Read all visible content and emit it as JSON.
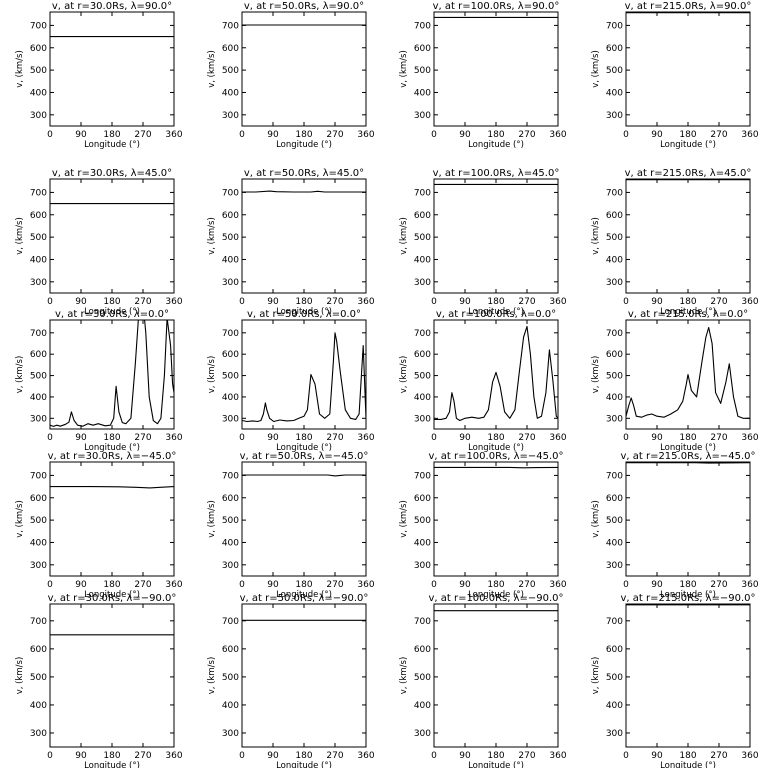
{
  "figure": {
    "background": "#ffffff",
    "line_color": "#000000"
  },
  "chart_data": [
    {
      "type": "line",
      "title": "v, at r=30.0Rs, λ=90.0°",
      "xlabel": "Longitude (°)",
      "ylabel": "v, (km/s)",
      "xlim": [
        0,
        360
      ],
      "ylim": [
        250,
        760
      ],
      "xticks": [
        0,
        90,
        180,
        270,
        360
      ],
      "yticks": [
        300,
        400,
        500,
        600,
        700
      ],
      "grid": false,
      "series": [
        {
          "x": [
            0,
            360
          ],
          "y": [
            650,
            650
          ]
        }
      ]
    },
    {
      "type": "line",
      "title": "v, at r=50.0Rs, λ=90.0°",
      "xlabel": "Longitude (°)",
      "ylabel": "v, (km/s)",
      "xlim": [
        0,
        360
      ],
      "ylim": [
        250,
        760
      ],
      "xticks": [
        0,
        90,
        180,
        270,
        360
      ],
      "yticks": [
        300,
        400,
        500,
        600,
        700
      ],
      "grid": false,
      "series": [
        {
          "x": [
            0,
            360
          ],
          "y": [
            702,
            702
          ]
        }
      ]
    },
    {
      "type": "line",
      "title": "v, at r=100.0Rs, λ=90.0°",
      "xlabel": "Longitude (°)",
      "ylabel": "v, (km/s)",
      "xlim": [
        0,
        360
      ],
      "ylim": [
        250,
        760
      ],
      "xticks": [
        0,
        90,
        180,
        270,
        360
      ],
      "yticks": [
        300,
        400,
        500,
        600,
        700
      ],
      "grid": false,
      "series": [
        {
          "x": [
            0,
            360
          ],
          "y": [
            736,
            736
          ]
        }
      ]
    },
    {
      "type": "line",
      "title": "v, at r=215.0Rs, λ=90.0°",
      "xlabel": "Longitude (°)",
      "ylabel": "v, (km/s)",
      "xlim": [
        0,
        360
      ],
      "ylim": [
        250,
        760
      ],
      "xticks": [
        0,
        90,
        180,
        270,
        360
      ],
      "yticks": [
        300,
        400,
        500,
        600,
        700
      ],
      "grid": false,
      "series": [
        {
          "x": [
            0,
            360
          ],
          "y": [
            757,
            757
          ]
        }
      ]
    },
    {
      "type": "line",
      "title": "v, at r=30.0Rs, λ=45.0°",
      "xlabel": "Longitude (°)",
      "ylabel": "v, (km/s)",
      "xlim": [
        0,
        360
      ],
      "ylim": [
        250,
        760
      ],
      "xticks": [
        0,
        90,
        180,
        270,
        360
      ],
      "yticks": [
        300,
        400,
        500,
        600,
        700
      ],
      "grid": false,
      "series": [
        {
          "x": [
            0,
            360
          ],
          "y": [
            650,
            650
          ]
        }
      ]
    },
    {
      "type": "line",
      "title": "v, at r=50.0Rs, λ=45.0°",
      "xlabel": "Longitude (°)",
      "ylabel": "v, (km/s)",
      "xlim": [
        0,
        360
      ],
      "ylim": [
        250,
        760
      ],
      "xticks": [
        0,
        90,
        180,
        270,
        360
      ],
      "yticks": [
        300,
        400,
        500,
        600,
        700
      ],
      "grid": false,
      "series": [
        {
          "x": [
            0,
            40,
            80,
            100,
            150,
            200,
            220,
            240,
            300,
            360
          ],
          "y": [
            702,
            702,
            706,
            703,
            702,
            702,
            705,
            702,
            702,
            702
          ]
        }
      ]
    },
    {
      "type": "line",
      "title": "v, at r=100.0Rs, λ=45.0°",
      "xlabel": "Longitude (°)",
      "ylabel": "v, (km/s)",
      "xlim": [
        0,
        360
      ],
      "ylim": [
        250,
        760
      ],
      "xticks": [
        0,
        90,
        180,
        270,
        360
      ],
      "yticks": [
        300,
        400,
        500,
        600,
        700
      ],
      "grid": false,
      "series": [
        {
          "x": [
            0,
            360
          ],
          "y": [
            736,
            736
          ]
        }
      ]
    },
    {
      "type": "line",
      "title": "v, at r=215.0Rs, λ=45.0°",
      "xlabel": "Longitude (°)",
      "ylabel": "v, (km/s)",
      "xlim": [
        0,
        360
      ],
      "ylim": [
        250,
        760
      ],
      "xticks": [
        0,
        90,
        180,
        270,
        360
      ],
      "yticks": [
        300,
        400,
        500,
        600,
        700
      ],
      "grid": false,
      "series": [
        {
          "x": [
            0,
            360
          ],
          "y": [
            757,
            757
          ]
        }
      ]
    },
    {
      "type": "line",
      "title": "v, at r=30.0Rs, λ=0.0°",
      "xlabel": "Longitude (°)",
      "ylabel": "v, (km/s)",
      "xlim": [
        0,
        360
      ],
      "ylim": [
        250,
        760
      ],
      "xticks": [
        0,
        90,
        180,
        270,
        360
      ],
      "yticks": [
        300,
        400,
        500,
        600,
        700
      ],
      "grid": false,
      "series": [
        {
          "x": [
            0,
            10,
            20,
            30,
            45,
            55,
            62,
            70,
            80,
            95,
            110,
            125,
            140,
            160,
            175,
            185,
            192,
            200,
            210,
            220,
            235,
            248,
            258,
            270,
            278,
            288,
            300,
            312,
            322,
            332,
            340,
            350,
            356,
            360
          ],
          "y": [
            268,
            262,
            268,
            263,
            272,
            282,
            330,
            290,
            268,
            263,
            275,
            268,
            275,
            265,
            268,
            300,
            450,
            330,
            280,
            275,
            300,
            560,
            800,
            840,
            700,
            400,
            290,
            275,
            300,
            500,
            770,
            640,
            460,
            420
          ]
        }
      ]
    },
    {
      "type": "line",
      "title": "v, at r=50.0Rs, λ=0.0°",
      "xlabel": "Longitude (°)",
      "ylabel": "v, (km/s)",
      "xlim": [
        0,
        360
      ],
      "ylim": [
        250,
        760
      ],
      "xticks": [
        0,
        90,
        180,
        270,
        360
      ],
      "yticks": [
        300,
        400,
        500,
        600,
        700
      ],
      "grid": false,
      "series": [
        {
          "x": [
            0,
            15,
            30,
            45,
            55,
            62,
            68,
            72,
            80,
            92,
            110,
            130,
            150,
            165,
            180,
            190,
            200,
            212,
            225,
            240,
            255,
            265,
            270,
            275,
            285,
            300,
            315,
            330,
            340,
            352,
            360
          ],
          "y": [
            290,
            285,
            288,
            285,
            290,
            320,
            372,
            340,
            300,
            285,
            292,
            288,
            290,
            300,
            310,
            340,
            505,
            460,
            320,
            300,
            320,
            560,
            700,
            660,
            520,
            340,
            300,
            295,
            320,
            640,
            300
          ]
        }
      ]
    },
    {
      "type": "line",
      "title": "v, at r=100.0Rs, λ=0.0°",
      "xlabel": "Longitude (°)",
      "ylabel": "v, (km/s)",
      "xlim": [
        0,
        360
      ],
      "ylim": [
        250,
        760
      ],
      "xticks": [
        0,
        90,
        180,
        270,
        360
      ],
      "yticks": [
        300,
        400,
        500,
        600,
        700
      ],
      "grid": false,
      "series": [
        {
          "x": [
            0,
            20,
            35,
            45,
            52,
            58,
            65,
            75,
            90,
            110,
            130,
            145,
            158,
            170,
            180,
            192,
            205,
            220,
            235,
            248,
            260,
            270,
            280,
            290,
            300,
            312,
            325,
            335,
            345,
            355,
            360
          ],
          "y": [
            295,
            295,
            300,
            330,
            420,
            380,
            300,
            290,
            300,
            305,
            300,
            305,
            340,
            470,
            515,
            450,
            330,
            300,
            340,
            520,
            680,
            730,
            600,
            400,
            300,
            310,
            420,
            620,
            480,
            310,
            300
          ]
        }
      ]
    },
    {
      "type": "line",
      "title": "v, at r=215.0Rs, λ=0.0°",
      "xlabel": "Longitude (°)",
      "ylabel": "v, (km/s)",
      "xlim": [
        0,
        360
      ],
      "ylim": [
        250,
        760
      ],
      "xticks": [
        0,
        90,
        180,
        270,
        360
      ],
      "yticks": [
        300,
        400,
        500,
        600,
        700
      ],
      "grid": false,
      "series": [
        {
          "x": [
            0,
            8,
            15,
            22,
            30,
            45,
            60,
            75,
            90,
            110,
            130,
            150,
            165,
            175,
            180,
            190,
            205,
            220,
            232,
            240,
            250,
            260,
            275,
            290,
            300,
            312,
            325,
            340,
            360
          ],
          "y": [
            310,
            360,
            395,
            360,
            310,
            305,
            315,
            320,
            310,
            305,
            320,
            340,
            380,
            460,
            505,
            430,
            400,
            560,
            680,
            725,
            650,
            420,
            370,
            470,
            555,
            400,
            310,
            300,
            300
          ]
        }
      ]
    },
    {
      "type": "line",
      "title": "v, at r=30.0Rs, λ=−45.0°",
      "xlabel": "Longitude (°)",
      "ylabel": "v, (km/s)",
      "xlim": [
        0,
        360
      ],
      "ylim": [
        250,
        760
      ],
      "xticks": [
        0,
        90,
        180,
        270,
        360
      ],
      "yticks": [
        300,
        400,
        500,
        600,
        700
      ],
      "grid": false,
      "series": [
        {
          "x": [
            0,
            120,
            200,
            250,
            290,
            320,
            360
          ],
          "y": [
            650,
            650,
            649,
            647,
            644,
            647,
            650
          ]
        }
      ]
    },
    {
      "type": "line",
      "title": "v, at r=50.0Rs, λ=−45.0°",
      "xlabel": "Longitude (°)",
      "ylabel": "v, (km/s)",
      "xlim": [
        0,
        360
      ],
      "ylim": [
        250,
        760
      ],
      "xticks": [
        0,
        90,
        180,
        270,
        360
      ],
      "yticks": [
        300,
        400,
        500,
        600,
        700
      ],
      "grid": false,
      "series": [
        {
          "x": [
            0,
            150,
            250,
            270,
            285,
            300,
            360
          ],
          "y": [
            702,
            702,
            702,
            698,
            700,
            702,
            702
          ]
        }
      ]
    },
    {
      "type": "line",
      "title": "v, at r=100.0Rs, λ=−45.0°",
      "xlabel": "Longitude (°)",
      "ylabel": "v, (km/s)",
      "xlim": [
        0,
        360
      ],
      "ylim": [
        250,
        760
      ],
      "xticks": [
        0,
        90,
        180,
        270,
        360
      ],
      "yticks": [
        300,
        400,
        500,
        600,
        700
      ],
      "grid": false,
      "series": [
        {
          "x": [
            0,
            220,
            260,
            300,
            360
          ],
          "y": [
            736,
            736,
            734,
            735,
            736
          ]
        }
      ]
    },
    {
      "type": "line",
      "title": "v, at r=215.0Rs, λ=−45.0°",
      "xlabel": "Longitude (°)",
      "ylabel": "v, (km/s)",
      "xlim": [
        0,
        360
      ],
      "ylim": [
        250,
        760
      ],
      "xticks": [
        0,
        90,
        180,
        270,
        360
      ],
      "yticks": [
        300,
        400,
        500,
        600,
        700
      ],
      "grid": false,
      "series": [
        {
          "x": [
            0,
            200,
            240,
            280,
            360
          ],
          "y": [
            757,
            757,
            755,
            756,
            757
          ]
        }
      ]
    },
    {
      "type": "line",
      "title": "v, at r=30.0Rs, λ=−90.0°",
      "xlabel": "Longitude (°)",
      "ylabel": "v, (km/s)",
      "xlim": [
        0,
        360
      ],
      "ylim": [
        250,
        760
      ],
      "xticks": [
        0,
        90,
        180,
        270,
        360
      ],
      "yticks": [
        300,
        400,
        500,
        600,
        700
      ],
      "grid": false,
      "series": [
        {
          "x": [
            0,
            360
          ],
          "y": [
            650,
            650
          ]
        }
      ]
    },
    {
      "type": "line",
      "title": "v, at r=50.0Rs, λ=−90.0°",
      "xlabel": "Longitude (°)",
      "ylabel": "v, (km/s)",
      "xlim": [
        0,
        360
      ],
      "ylim": [
        250,
        760
      ],
      "xticks": [
        0,
        90,
        180,
        270,
        360
      ],
      "yticks": [
        300,
        400,
        500,
        600,
        700
      ],
      "grid": false,
      "series": [
        {
          "x": [
            0,
            360
          ],
          "y": [
            702,
            702
          ]
        }
      ]
    },
    {
      "type": "line",
      "title": "v, at r=100.0Rs, λ=−90.0°",
      "xlabel": "Longitude (°)",
      "ylabel": "v, (km/s)",
      "xlim": [
        0,
        360
      ],
      "ylim": [
        250,
        760
      ],
      "xticks": [
        0,
        90,
        180,
        270,
        360
      ],
      "yticks": [
        300,
        400,
        500,
        600,
        700
      ],
      "grid": false,
      "series": [
        {
          "x": [
            0,
            360
          ],
          "y": [
            736,
            736
          ]
        }
      ]
    },
    {
      "type": "line",
      "title": "v, at r=215.0Rs, λ=−90.0°",
      "xlabel": "Longitude (°)",
      "ylabel": "v, (km/s)",
      "xlim": [
        0,
        360
      ],
      "ylim": [
        250,
        760
      ],
      "xticks": [
        0,
        90,
        180,
        270,
        360
      ],
      "yticks": [
        300,
        400,
        500,
        600,
        700
      ],
      "grid": false,
      "series": [
        {
          "x": [
            0,
            360
          ],
          "y": [
            757,
            757
          ]
        }
      ]
    }
  ]
}
